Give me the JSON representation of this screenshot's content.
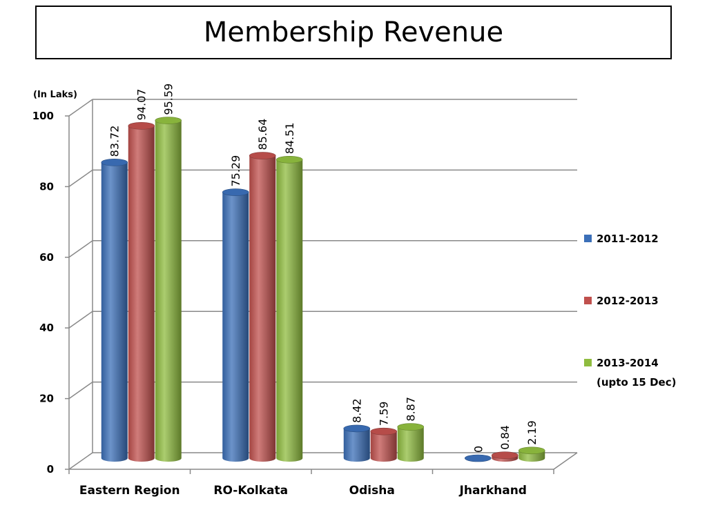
{
  "chart_data": {
    "type": "bar",
    "title": "Membership Revenue",
    "unit_label": "(In Laks)",
    "categories": [
      "Eastern Region",
      "RO-Kolkata",
      "Odisha",
      "Jharkhand"
    ],
    "series": [
      {
        "name": "2011-2012",
        "color": "#3b6fb8",
        "values": [
          83.72,
          75.29,
          8.42,
          0
        ],
        "labels": [
          "83.72",
          "75.29",
          "8.42",
          "0"
        ]
      },
      {
        "name": "2012-2013",
        "color": "#c0504d",
        "values": [
          94.07,
          85.64,
          7.59,
          0.84
        ],
        "labels": [
          "94.07",
          "85.64",
          "7.59",
          "0.84"
        ]
      },
      {
        "name": "2013-2014",
        "name_line2": "(upto 15 Dec)",
        "color": "#8fbc3f",
        "values": [
          95.59,
          84.51,
          8.87,
          2.19
        ],
        "labels": [
          "95.59",
          "84.51",
          "8.87",
          "2.19"
        ]
      }
    ],
    "yticks": [
      "0",
      "20",
      "40",
      "60",
      "80",
      "100"
    ],
    "ylim": [
      0,
      100
    ],
    "grid": true,
    "legend_position": "right",
    "style": "3d-cylinder"
  }
}
